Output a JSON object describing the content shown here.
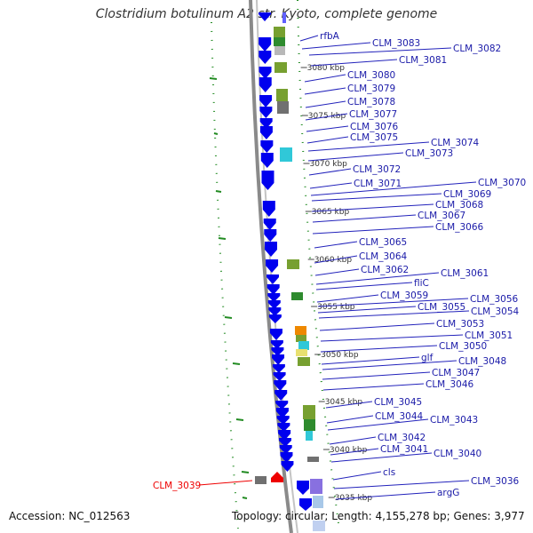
{
  "title": "Clostridium botulinum A2 str. Kyoto, complete genome",
  "footer": {
    "accession": "Accession: NC_012563",
    "summary": "Topology: circular; Length: 4,155,278 bp; Genes: 3,977"
  },
  "colors": {
    "forward_gene": "#0000ee",
    "gene_label": "#1a1aa8",
    "highlight_gene": "#ee0000",
    "cds_green": "#77a030",
    "cds_dark_green": "#2e8b2e",
    "cds_cyan": "#30c8d8",
    "cds_grey": "#707070",
    "cds_orange": "#ee8800",
    "cds_yellow": "#e8e070",
    "cds_purple": "#8870e0",
    "gc_skew_dots": "#228b22",
    "backbone": "#888888"
  },
  "scale_ticks": [
    "3080 kbp",
    "3075 kbp",
    "3070 kbp",
    "3065 kbp",
    "3060 kbp",
    "3055 kbp",
    "3050 kbp",
    "3045 kbp",
    "3040 kbp",
    "3035 kbp"
  ],
  "gene_labels": [
    "rfbA",
    "CLM_3083",
    "CLM_3082",
    "CLM_3081",
    "CLM_3080",
    "CLM_3079",
    "CLM_3078",
    "CLM_3077",
    "CLM_3076",
    "CLM_3075",
    "CLM_3074",
    "CLM_3073",
    "CLM_3072",
    "CLM_3071",
    "CLM_3070",
    "CLM_3069",
    "CLM_3068",
    "CLM_3067",
    "CLM_3066",
    "CLM_3065",
    "CLM_3064",
    "CLM_3062",
    "CLM_3061",
    "fliC",
    "CLM_3059",
    "CLM_3056",
    "CLM_3055",
    "CLM_3054",
    "CLM_3053",
    "CLM_3051",
    "CLM_3050",
    "glf",
    "CLM_3048",
    "CLM_3047",
    "CLM_3046",
    "CLM_3045",
    "CLM_3044",
    "CLM_3043",
    "CLM_3042",
    "CLM_3041",
    "CLM_3040",
    "cls",
    "CLM_3036",
    "argG"
  ],
  "highlighted_gene": "CLM_3039"
}
